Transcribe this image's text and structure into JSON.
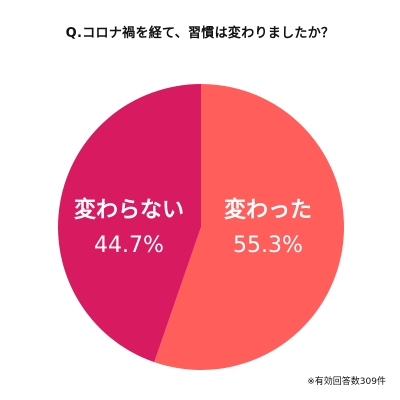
{
  "chart_data": {
    "type": "pie",
    "title": "Q.コロナ禍を経て、習慣は変わりましたか？",
    "slices": [
      {
        "label": "変わった",
        "value": 55.3,
        "value_label": "55.3%",
        "color": "#FF5E5B"
      },
      {
        "label": "変わらない",
        "value": 44.7,
        "value_label": "44.7%",
        "color": "#D81B60"
      }
    ],
    "start": "12 o'clock",
    "direction": "clockwise",
    "legend": "none",
    "note": "※有効回答数309件"
  }
}
